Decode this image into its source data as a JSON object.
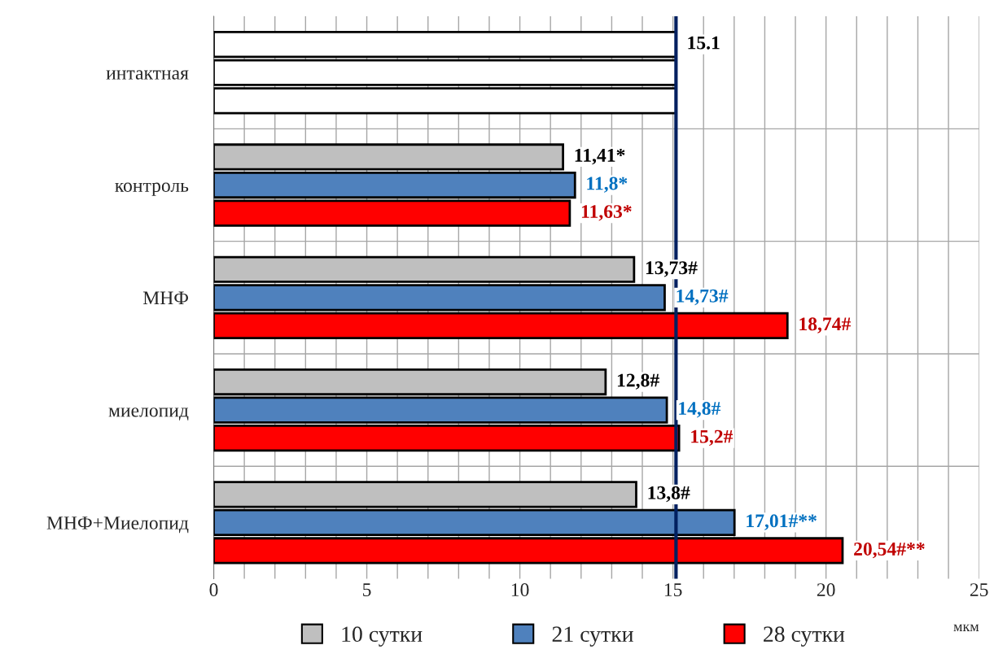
{
  "chart_data": {
    "type": "bar",
    "orientation": "horizontal",
    "xlabel": "мкм",
    "categories": [
      "интактная",
      "контроль",
      "МНФ",
      "миелопид",
      "МНФ+Миелопид"
    ],
    "series": [
      {
        "name": "10 сутки",
        "color": "#bfbfbf",
        "colors": [
          "#ffffff",
          "#bfbfbf",
          "#bfbfbf",
          "#bfbfbf",
          "#bfbfbf"
        ],
        "values": [
          15.1,
          11.41,
          13.73,
          12.8,
          13.8
        ],
        "value_labels": [
          "15.1",
          "11,41*",
          "13,73#",
          "12,8#",
          "13,8#"
        ]
      },
      {
        "name": "21 сутки",
        "color": "#4f81bd",
        "colors": [
          "#ffffff",
          "#4f81bd",
          "#4f81bd",
          "#4f81bd",
          "#4f81bd"
        ],
        "values": [
          15.1,
          11.8,
          14.73,
          14.8,
          17.01
        ],
        "value_labels": [
          null,
          "11,8*",
          "14,73#",
          "14,8#",
          "17,01#**"
        ]
      },
      {
        "name": "28 сутки",
        "color": "#ff0000",
        "colors": [
          "#ffffff",
          "#ff0000",
          "#ff0000",
          "#ff0000",
          "#ff0000"
        ],
        "values": [
          15.1,
          11.63,
          18.74,
          15.2,
          20.54
        ],
        "value_labels": [
          null,
          "11,63*",
          "18,74#",
          "15,2#",
          "20,54#**"
        ]
      }
    ],
    "xlim": [
      0,
      25
    ],
    "xticks": [
      0,
      {
        "value": 1,
        "label": null
      },
      {
        "value": 2,
        "label": null
      },
      {
        "value": 3,
        "label": null
      },
      {
        "value": 4,
        "label": null
      },
      5,
      {
        "value": 6,
        "label": null
      },
      {
        "value": 7,
        "label": null
      },
      {
        "value": 8,
        "label": null
      },
      {
        "value": 9,
        "label": null
      },
      10,
      {
        "value": 11,
        "label": null
      },
      {
        "value": 12,
        "label": null
      },
      {
        "value": 13,
        "label": null
      },
      {
        "value": 14,
        "label": null
      },
      15,
      {
        "value": 16,
        "label": null
      },
      {
        "value": 17,
        "label": null
      },
      {
        "value": 18,
        "label": null
      },
      {
        "value": 19,
        "label": null
      },
      20,
      {
        "value": 21,
        "label": null
      },
      {
        "value": 22,
        "label": null
      },
      {
        "value": 23,
        "label": null
      },
      {
        "value": 24,
        "label": null
      },
      25
    ],
    "ref_lines": [
      {
        "axis": "x",
        "value": 15.1,
        "color": "#002060"
      }
    ],
    "grid": true,
    "legend": "bottom"
  }
}
